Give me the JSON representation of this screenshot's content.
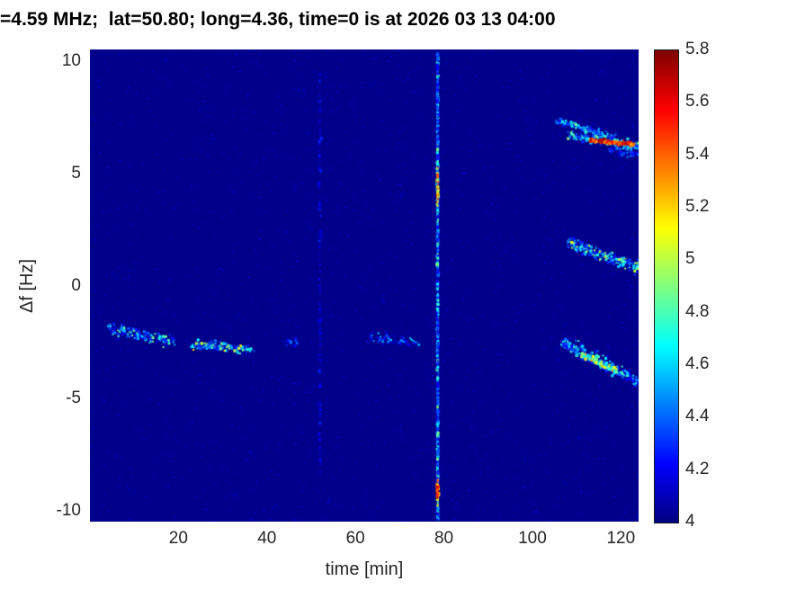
{
  "figure": {
    "background_color": "#ffffff",
    "tick_color": "#262626",
    "title_color": "#000000",
    "frame_color": "#1a1a1a"
  },
  "chart_data": {
    "type": "heatmap",
    "subtype": "doppler-spectrogram",
    "title": "=4.59 MHz;  lat=50.80; long=4.36, time=0 is at 2026 03 13 04:00",
    "xlabel": "time [min]",
    "ylabel": "Δf [Hz]",
    "xlim": [
      0,
      124
    ],
    "ylim": [
      -10.5,
      10.5
    ],
    "xticks": [
      20,
      40,
      60,
      80,
      100,
      120
    ],
    "yticks": [
      10,
      5,
      0,
      -5,
      -10
    ],
    "colorbar": {
      "colormap": "jet",
      "vmin": 4,
      "vmax": 5.8,
      "tick_labels": [
        "5.8",
        "5.6",
        "5.4",
        "5.2",
        "5",
        "4.8",
        "4.6",
        "4.4",
        "4.2",
        "4"
      ]
    },
    "background_value": 4.02,
    "noise": {
      "n": 2600,
      "vmin": 4.03,
      "vmax": 4.25
    },
    "features": [
      {
        "kind": "trace",
        "desc": "doppler-trace-left-1",
        "t0": 4,
        "t1": 19,
        "f0": -1.9,
        "f1": -2.5,
        "curve": 1,
        "jt": 0.5,
        "jf": 0.28,
        "n": 150,
        "vmin": 4.2,
        "vmax": 4.9,
        "bias": 2
      },
      {
        "kind": "trace",
        "desc": "doppler-trace-left-2",
        "t0": 23,
        "t1": 37,
        "f0": -2.6,
        "f1": -2.85,
        "curve": 1,
        "jt": 0.5,
        "jf": 0.2,
        "n": 140,
        "vmin": 4.25,
        "vmax": 5.15,
        "bias": 2
      },
      {
        "kind": "trace",
        "desc": "doppler-trace-mid-faint",
        "t0": 44,
        "t1": 47,
        "f0": -2.5,
        "f1": -2.55,
        "curve": 1,
        "jt": 0.4,
        "jf": 0.2,
        "n": 16,
        "vmin": 4.15,
        "vmax": 4.5,
        "bias": 1.5
      },
      {
        "kind": "trace",
        "desc": "doppler-trace-mid-2",
        "t0": 63,
        "t1": 74.5,
        "f0": -2.3,
        "f1": -2.5,
        "curve": 1,
        "jt": 0.5,
        "jf": 0.22,
        "n": 60,
        "vmin": 4.15,
        "vmax": 4.65,
        "bias": 2
      },
      {
        "kind": "vline",
        "desc": "faint-noise-column",
        "t": 52,
        "f0": -8.5,
        "f1": 9.5,
        "jt": 0.3,
        "n": 160,
        "vmin": 4.05,
        "vmax": 4.3,
        "bias": 1.5
      },
      {
        "kind": "vline",
        "desc": "strong-event-column",
        "t": 78.6,
        "f0": -10.4,
        "f1": 10.4,
        "jt": 0.15,
        "n": 900,
        "vmin": 4.2,
        "vmax": 4.95,
        "bias": 2
      },
      {
        "kind": "blob",
        "desc": "event-hotspot-upper",
        "t": 78.6,
        "f": 4.3,
        "rt": 0.2,
        "rf": 0.9,
        "n": 45,
        "vmin": 4.8,
        "vmax": 5.6,
        "bias": 1
      },
      {
        "kind": "blob",
        "desc": "event-hotspot-lower",
        "t": 78.6,
        "f": -9.15,
        "rt": 0.22,
        "rf": 0.5,
        "n": 55,
        "vmin": 5.0,
        "vmax": 5.8,
        "bias": 1
      },
      {
        "kind": "trace",
        "desc": "right-top-upper-branch",
        "t0": 105.5,
        "t1": 119,
        "f0": 7.35,
        "f1": 6.55,
        "curve": 1,
        "jt": 0.35,
        "jf": 0.16,
        "n": 140,
        "vmin": 4.25,
        "vmax": 4.9,
        "bias": 2
      },
      {
        "kind": "trace",
        "desc": "right-top-halo",
        "t0": 108,
        "t1": 124,
        "f0": 6.75,
        "f1": 6.2,
        "curve": 0.8,
        "jt": 0.35,
        "jf": 0.2,
        "n": 200,
        "vmin": 4.3,
        "vmax": 5.0,
        "bias": 2
      },
      {
        "kind": "trace",
        "desc": "right-top-hot-core",
        "t0": 113,
        "t1": 123,
        "f0": 6.45,
        "f1": 6.28,
        "curve": 1,
        "jt": 0.3,
        "jf": 0.09,
        "n": 170,
        "vmin": 5.2,
        "vmax": 5.8,
        "bias": 1
      },
      {
        "kind": "trace",
        "desc": "right-top-lower-faint",
        "t0": 117,
        "t1": 124,
        "f0": 6.0,
        "f1": 5.85,
        "curve": 1,
        "jt": 0.35,
        "jf": 0.15,
        "n": 50,
        "vmin": 4.15,
        "vmax": 4.55,
        "bias": 1.5
      },
      {
        "kind": "trace",
        "desc": "right-mid-trace",
        "t0": 108,
        "t1": 124,
        "f0": 1.95,
        "f1": 0.8,
        "curve": 0.9,
        "jt": 0.4,
        "jf": 0.26,
        "n": 240,
        "vmin": 4.25,
        "vmax": 5.1,
        "bias": 2
      },
      {
        "kind": "trace",
        "desc": "right-bottom-halo",
        "t0": 106.5,
        "t1": 124,
        "f0": -2.55,
        "f1": -4.35,
        "curve": 1.15,
        "jt": 0.4,
        "jf": 0.3,
        "n": 260,
        "vmin": 4.2,
        "vmax": 4.85,
        "bias": 2
      },
      {
        "kind": "trace",
        "desc": "right-bottom-core",
        "t0": 111,
        "t1": 119,
        "f0": -3.05,
        "f1": -3.8,
        "curve": 1,
        "jt": 0.35,
        "jf": 0.14,
        "n": 110,
        "vmin": 4.6,
        "vmax": 5.35,
        "bias": 1.5
      }
    ]
  }
}
